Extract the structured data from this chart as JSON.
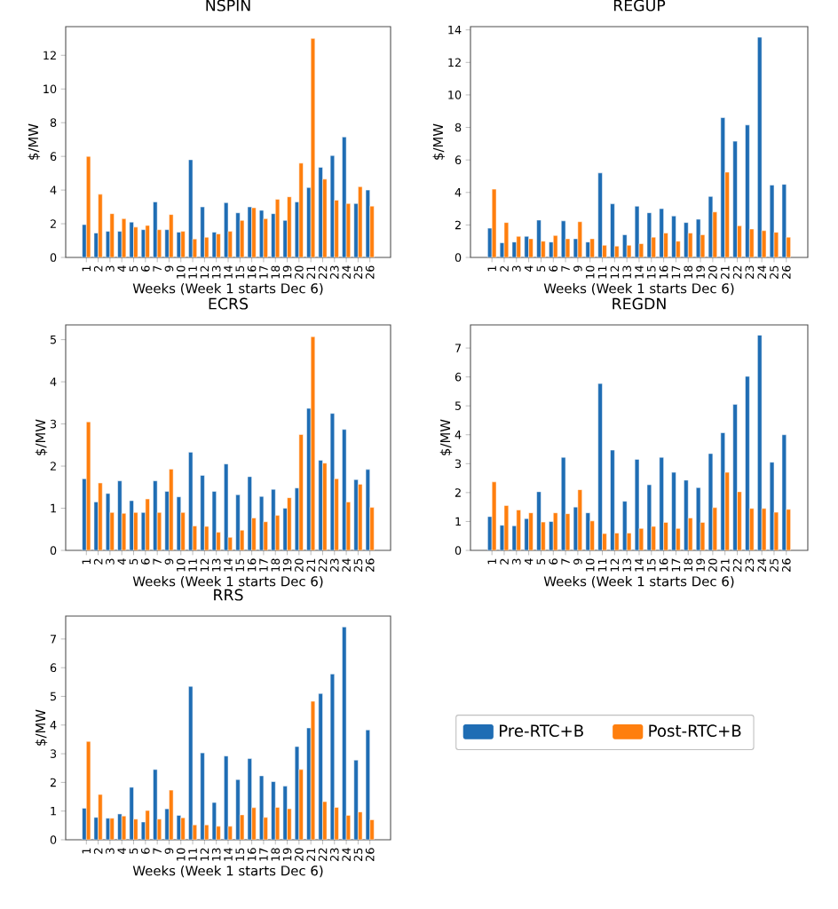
{
  "chart_data": [
    {
      "type": "bar",
      "title": "NSPIN",
      "xlabel": "Weeks (Week 1 starts Dec 6)",
      "ylabel": "$/MW",
      "categories": [
        "1",
        "2",
        "3",
        "4",
        "5",
        "6",
        "7",
        "9",
        "10",
        "11",
        "12",
        "13",
        "14",
        "15",
        "16",
        "17",
        "18",
        "19",
        "20",
        "21",
        "22",
        "23",
        "24",
        "25",
        "26"
      ],
      "ylim": [
        0,
        13.7
      ],
      "yticks": [
        0,
        2,
        4,
        6,
        8,
        10,
        12
      ],
      "series": [
        {
          "color": "#1f6db4",
          "values": [
            1.95,
            1.45,
            1.55,
            1.55,
            2.1,
            1.65,
            3.3,
            1.65,
            1.5,
            5.8,
            3.0,
            1.5,
            3.25,
            2.65,
            3.0,
            2.8,
            2.6,
            2.2,
            3.3,
            4.15,
            5.35,
            6.05,
            7.15,
            3.2,
            4.0
          ]
        },
        {
          "color": "#ff7f0e",
          "values": [
            6.0,
            3.75,
            2.6,
            2.3,
            1.8,
            1.9,
            1.65,
            2.55,
            1.55,
            1.1,
            1.2,
            1.4,
            1.55,
            2.2,
            2.95,
            2.3,
            3.45,
            3.6,
            5.6,
            13.0,
            4.65,
            3.4,
            3.2,
            4.2,
            3.05
          ]
        }
      ]
    },
    {
      "type": "bar",
      "title": "REGUP",
      "xlabel": "Weeks (Week 1 starts Dec 6)",
      "ylabel": "$/MW",
      "categories": [
        "1",
        "2",
        "3",
        "4",
        "5",
        "6",
        "7",
        "9",
        "10",
        "11",
        "12",
        "13",
        "14",
        "15",
        "16",
        "17",
        "18",
        "19",
        "20",
        "21",
        "22",
        "23",
        "24",
        "25",
        "26"
      ],
      "ylim": [
        0,
        14.2
      ],
      "yticks": [
        0,
        2,
        4,
        6,
        8,
        10,
        12,
        14
      ],
      "series": [
        {
          "color": "#1f6db4",
          "values": [
            1.8,
            0.9,
            0.95,
            1.3,
            2.3,
            0.95,
            2.25,
            1.15,
            0.95,
            5.2,
            3.3,
            1.4,
            3.15,
            2.75,
            3.0,
            2.55,
            2.15,
            2.35,
            3.75,
            8.6,
            7.15,
            8.15,
            13.55,
            4.45,
            4.5
          ]
        },
        {
          "color": "#ff7f0e",
          "values": [
            4.2,
            2.15,
            1.3,
            1.15,
            1.0,
            1.35,
            1.15,
            2.2,
            1.15,
            0.75,
            0.7,
            0.75,
            0.85,
            1.25,
            1.5,
            1.0,
            1.5,
            1.4,
            2.8,
            5.25,
            1.95,
            1.75,
            1.65,
            1.55,
            1.25
          ]
        }
      ]
    },
    {
      "type": "bar",
      "title": "ECRS",
      "xlabel": "Weeks (Week 1 starts Dec 6)",
      "ylabel": "$/MW",
      "categories": [
        "1",
        "2",
        "3",
        "4",
        "5",
        "6",
        "7",
        "9",
        "10",
        "11",
        "12",
        "13",
        "14",
        "15",
        "16",
        "17",
        "18",
        "19",
        "20",
        "21",
        "22",
        "23",
        "24",
        "25",
        "26"
      ],
      "ylim": [
        0,
        5.35
      ],
      "yticks": [
        0,
        1,
        2,
        3,
        4,
        5
      ],
      "series": [
        {
          "color": "#1f6db4",
          "values": [
            1.7,
            1.15,
            1.35,
            1.65,
            1.18,
            0.9,
            1.65,
            1.4,
            1.27,
            2.33,
            1.78,
            1.4,
            2.05,
            1.32,
            1.75,
            1.28,
            1.45,
            1.0,
            1.48,
            3.37,
            2.14,
            3.25,
            2.87,
            1.68,
            1.92
          ]
        },
        {
          "color": "#ff7f0e",
          "values": [
            3.05,
            1.6,
            0.9,
            0.88,
            0.9,
            1.22,
            0.9,
            1.93,
            0.9,
            0.58,
            0.57,
            0.43,
            0.31,
            0.48,
            0.77,
            0.68,
            0.83,
            1.25,
            2.75,
            5.07,
            2.07,
            1.7,
            1.15,
            1.57,
            1.02
          ]
        }
      ]
    },
    {
      "type": "bar",
      "title": "REGDN",
      "xlabel": "Weeks (Week 1 starts Dec 6)",
      "ylabel": "$/MW",
      "categories": [
        "1",
        "2",
        "3",
        "4",
        "5",
        "6",
        "7",
        "9",
        "10",
        "11",
        "12",
        "13",
        "14",
        "15",
        "16",
        "17",
        "18",
        "19",
        "20",
        "21",
        "22",
        "23",
        "24",
        "25",
        "26"
      ],
      "ylim": [
        0,
        7.8
      ],
      "yticks": [
        0,
        1,
        2,
        3,
        4,
        5,
        6,
        7
      ],
      "series": [
        {
          "color": "#1f6db4",
          "values": [
            1.17,
            0.87,
            0.85,
            1.1,
            2.03,
            1.0,
            3.22,
            1.5,
            1.3,
            5.77,
            3.47,
            1.7,
            3.15,
            2.27,
            3.22,
            2.7,
            2.43,
            2.17,
            3.35,
            4.07,
            5.05,
            6.02,
            7.45,
            3.05,
            4.0
          ]
        },
        {
          "color": "#ff7f0e",
          "values": [
            2.37,
            1.55,
            1.4,
            1.3,
            0.98,
            1.3,
            1.27,
            2.1,
            1.02,
            0.58,
            0.6,
            0.6,
            0.76,
            0.83,
            0.97,
            0.76,
            1.12,
            0.97,
            1.48,
            2.7,
            2.03,
            1.45,
            1.45,
            1.32,
            1.42
          ]
        }
      ]
    },
    {
      "type": "bar",
      "title": "RRS",
      "xlabel": "Weeks (Week 1 starts Dec 6)",
      "ylabel": "$/MW",
      "legend": "right",
      "categories": [
        "1",
        "2",
        "3",
        "4",
        "5",
        "6",
        "7",
        "9",
        "10",
        "11",
        "12",
        "13",
        "14",
        "15",
        "16",
        "17",
        "18",
        "19",
        "20",
        "21",
        "22",
        "23",
        "24",
        "25",
        "26"
      ],
      "ylim": [
        0,
        7.8
      ],
      "yticks": [
        0,
        1,
        2,
        3,
        4,
        5,
        6,
        7
      ],
      "series": [
        {
          "name": "Pre-RTC+B",
          "color": "#1f6db4",
          "values": [
            1.1,
            0.78,
            0.75,
            0.9,
            1.83,
            0.62,
            2.45,
            1.08,
            0.85,
            5.35,
            3.03,
            1.3,
            2.92,
            2.1,
            2.83,
            2.23,
            2.03,
            1.87,
            3.25,
            3.9,
            5.1,
            5.78,
            7.42,
            2.78,
            3.83
          ]
        },
        {
          "name": "Post-RTC+B",
          "color": "#ff7f0e",
          "values": [
            3.43,
            1.58,
            0.75,
            0.83,
            0.72,
            1.02,
            0.72,
            1.73,
            0.77,
            0.52,
            0.52,
            0.47,
            0.47,
            0.87,
            1.12,
            0.78,
            1.13,
            1.08,
            2.45,
            4.83,
            1.33,
            1.13,
            0.85,
            0.97,
            0.7
          ]
        }
      ]
    }
  ]
}
